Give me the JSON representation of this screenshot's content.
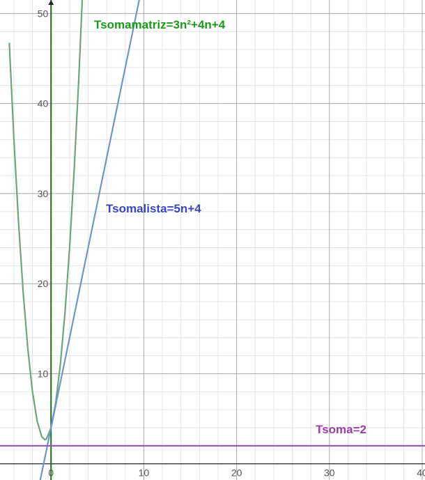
{
  "chart_data": {
    "type": "line",
    "title": "",
    "xlabel": "",
    "ylabel": "",
    "xlim": [
      -5.5,
      40.3
    ],
    "ylim": [
      -1.8,
      51.5
    ],
    "grid": true,
    "minor_grid_step": 2,
    "major_grid_step": 10,
    "x_ticks": [
      0,
      10,
      20,
      30,
      40
    ],
    "y_ticks": [
      10,
      20,
      30,
      40,
      50
    ],
    "x_tick_labels": [
      "0",
      "10",
      "20",
      "30",
      "40"
    ],
    "y_tick_labels": [
      "10",
      "20",
      "30",
      "40",
      "50"
    ],
    "series": [
      {
        "name": "",
        "formula": "3n²+4n+4",
        "color": "#6aa77c",
        "x": [
          -4.5,
          -4,
          -3.5,
          -3,
          -2.5,
          -2,
          -1.5,
          -1,
          -0.667,
          -0.5,
          0,
          0.5,
          1,
          1.5,
          2,
          2.5,
          3,
          3.5
        ],
        "y": [
          46.75,
          36,
          26.75,
          19,
          12.75,
          8,
          4.75,
          3,
          2.67,
          2.75,
          4,
          6.75,
          11,
          16.75,
          24,
          32.75,
          43,
          54.75
        ]
      },
      {
        "name": "",
        "formula": "5n+4",
        "color": "#6b98c8",
        "x": [
          -1.2,
          9.9
        ],
        "y": [
          -2,
          53.5
        ]
      },
      {
        "name": "",
        "formula": "2",
        "color": "#9b59b6",
        "x": [
          -5.5,
          40.3
        ],
        "y": [
          2,
          2
        ]
      }
    ],
    "annotations": [
      {
        "text": "Tsomamatriz=3n²+4n+4",
        "color": "#1a9a1a"
      },
      {
        "text": "Tsomalista=5n+4",
        "color": "#3a46c4"
      },
      {
        "text": "Tsoma=2",
        "color": "#9b3fa8"
      }
    ],
    "axis_color": "#1a6b1a"
  }
}
